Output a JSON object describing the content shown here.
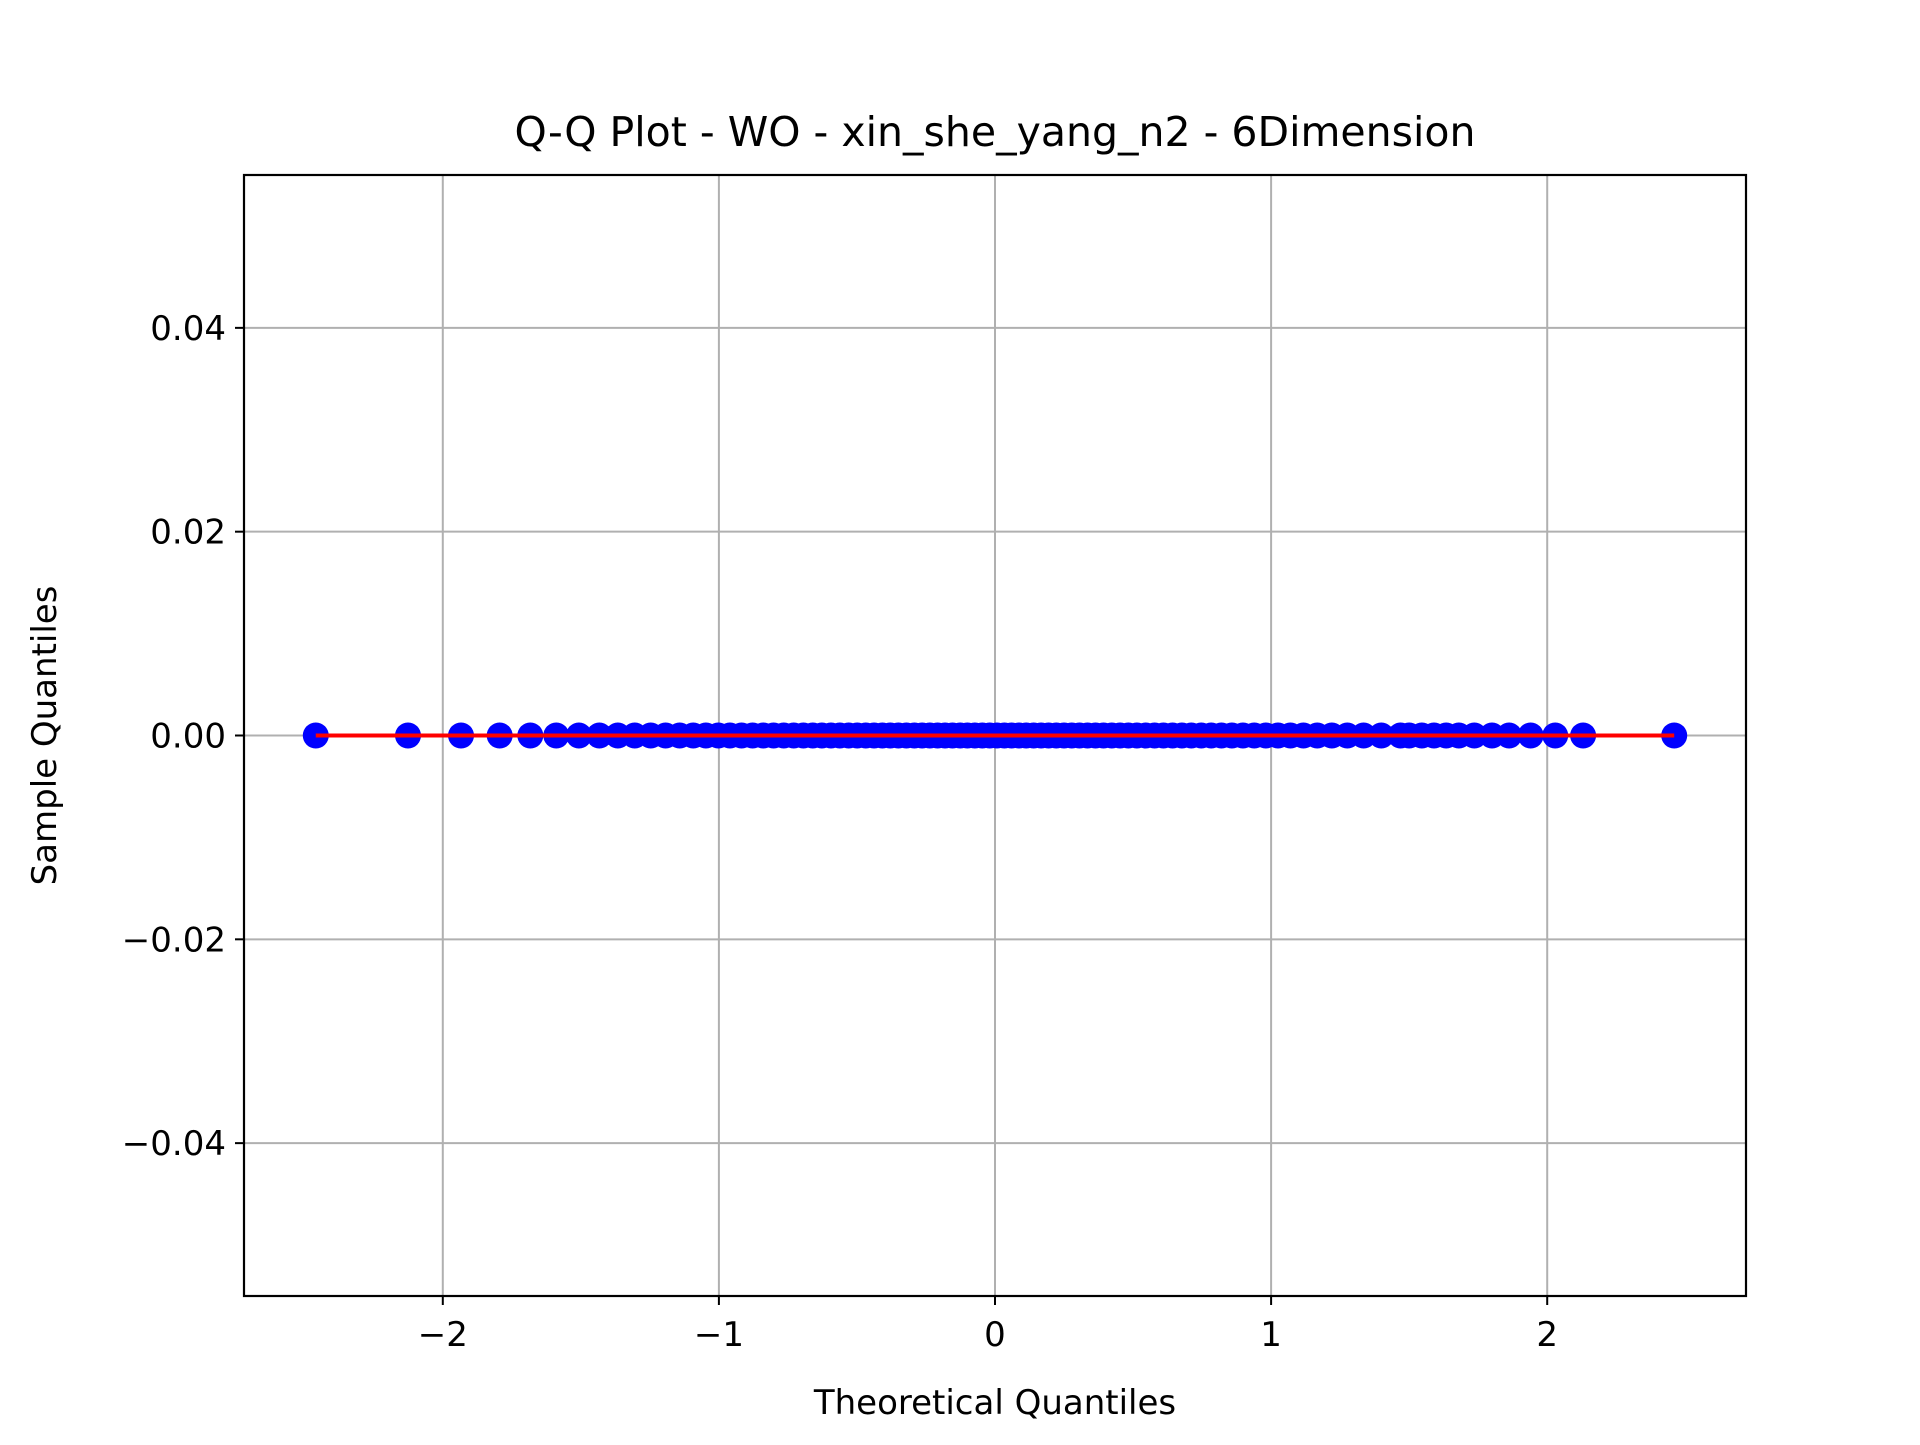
{
  "chart_data": {
    "type": "scatter",
    "title": "Q-Q Plot - WO - xin_she_yang_n2 - 6Dimension",
    "xlabel": "Theoretical Quantiles",
    "ylabel": "Sample Quantiles",
    "xlim": [
      -2.72,
      2.72
    ],
    "ylim": [
      -0.055,
      0.055
    ],
    "x_ticks": [
      -2,
      -1,
      0,
      1,
      2
    ],
    "x_tick_labels": [
      "−2",
      "−1",
      "0",
      "1",
      "2"
    ],
    "y_ticks": [
      -0.04,
      -0.02,
      0.0,
      0.02,
      0.04
    ],
    "y_tick_labels": [
      "−0.04",
      "−0.02",
      "0.00",
      "0.02",
      "0.04"
    ],
    "grid": true,
    "n_points": 100,
    "marker_color": "#0000ff",
    "line_color": "#ff0000",
    "points_x": [
      -2.46,
      -2.126,
      -1.934,
      -1.794,
      -1.683,
      -1.589,
      -1.507,
      -1.433,
      -1.366,
      -1.305,
      -1.247,
      -1.193,
      -1.142,
      -1.093,
      -1.047,
      -1.002,
      -0.96,
      -0.918,
      -0.878,
      -0.839,
      -0.802,
      -0.765,
      -0.729,
      -0.694,
      -0.66,
      -0.627,
      -0.594,
      -0.562,
      -0.53,
      -0.499,
      -0.468,
      -0.438,
      -0.408,
      -0.379,
      -0.35,
      -0.321,
      -0.292,
      -0.264,
      -0.236,
      -0.208,
      -0.181,
      -0.154,
      -0.126,
      -0.1,
      -0.073,
      -0.046,
      -0.019,
      0.007,
      0.034,
      0.06,
      0.087,
      0.113,
      0.14,
      0.167,
      0.194,
      0.222,
      0.25,
      0.278,
      0.306,
      0.335,
      0.364,
      0.393,
      0.423,
      0.453,
      0.483,
      0.514,
      0.546,
      0.578,
      0.61,
      0.643,
      0.677,
      0.711,
      0.747,
      0.783,
      0.82,
      0.858,
      0.898,
      0.939,
      0.981,
      1.025,
      1.07,
      1.117,
      1.167,
      1.22,
      1.276,
      1.335,
      1.399,
      1.469,
      1.546,
      1.634,
      1.736,
      1.862,
      2.029,
      1.5,
      1.59,
      1.68,
      1.8,
      1.94,
      2.13,
      2.46
    ],
    "points_y": [
      0,
      0,
      0,
      0,
      0,
      0,
      0,
      0,
      0,
      0,
      0,
      0,
      0,
      0,
      0,
      0,
      0,
      0,
      0,
      0,
      0,
      0,
      0,
      0,
      0,
      0,
      0,
      0,
      0,
      0,
      0,
      0,
      0,
      0,
      0,
      0,
      0,
      0,
      0,
      0,
      0,
      0,
      0,
      0,
      0,
      0,
      0,
      0,
      0,
      0,
      0,
      0,
      0,
      0,
      0,
      0,
      0,
      0,
      0,
      0,
      0,
      0,
      0,
      0,
      0,
      0,
      0,
      0,
      0,
      0,
      0,
      0,
      0,
      0,
      0,
      0,
      0,
      0,
      0,
      0,
      0,
      0,
      0,
      0,
      0,
      0,
      0,
      0,
      0,
      0,
      0,
      0,
      0,
      0,
      0,
      0,
      0,
      0,
      0,
      0
    ],
    "fit_line": {
      "x": [
        -2.46,
        2.46
      ],
      "y": [
        0.0,
        0.0
      ]
    }
  }
}
